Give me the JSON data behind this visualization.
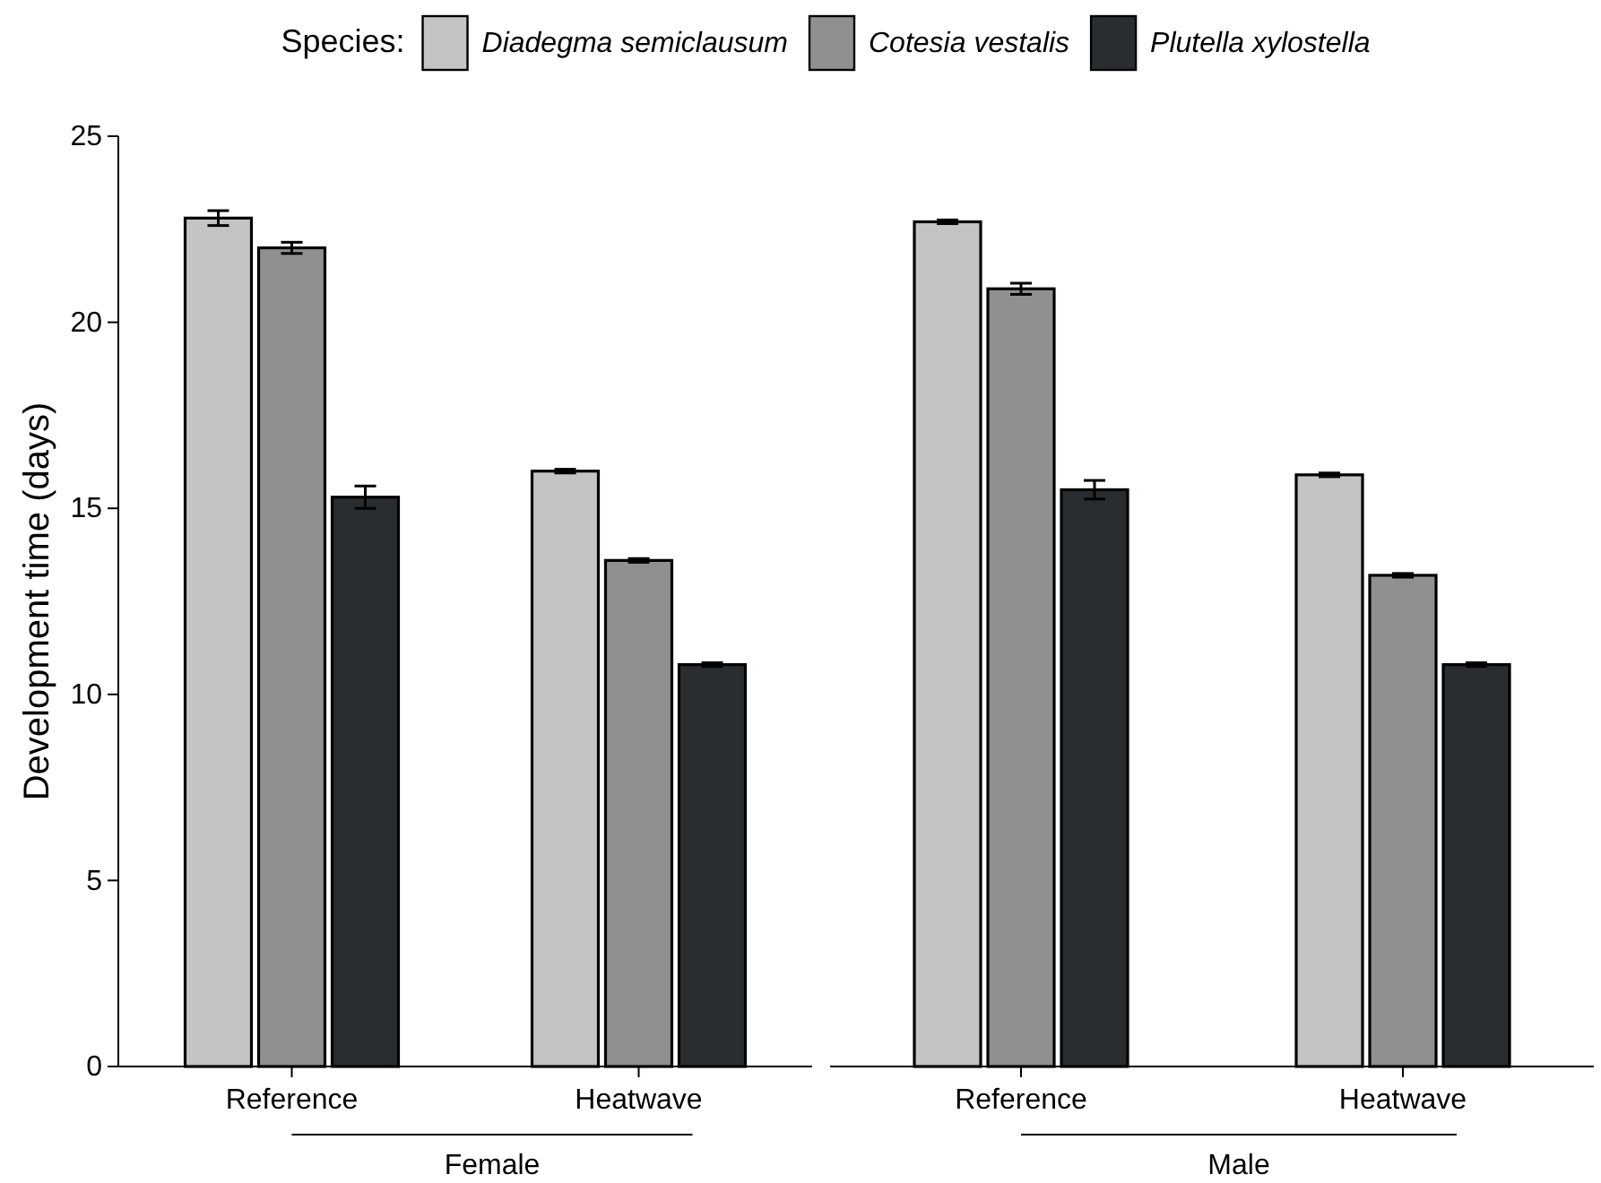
{
  "chart_data": [
    {
      "type": "bar",
      "legend_title": "Species:",
      "legend": "top",
      "ylabel": "Development time (days)",
      "xlabel": "Female",
      "categories": [
        "Reference",
        "Heatwave"
      ],
      "ylim": [
        0,
        25
      ],
      "yticks": [
        0,
        5,
        10,
        15,
        20,
        25
      ],
      "series": [
        {
          "name": "Diadegma semiclausum",
          "color": "#c4c4c4",
          "values": [
            22.8,
            16.0
          ],
          "errors": [
            0.2,
            0.05
          ]
        },
        {
          "name": "Cotesia vestalis",
          "color": "#8f9091",
          "values": [
            22.0,
            13.6
          ],
          "errors": [
            0.15,
            0.05
          ]
        },
        {
          "name": "Plutella xylostella",
          "color": "#2a2d2f",
          "values": [
            15.3,
            10.8
          ],
          "errors": [
            0.3,
            0.05
          ]
        }
      ]
    },
    {
      "type": "bar",
      "xlabel": "Male",
      "categories": [
        "Reference",
        "Heatwave"
      ],
      "ylim": [
        0,
        25
      ],
      "yticks": [
        0,
        5,
        10,
        15,
        20,
        25
      ],
      "tick_labels": "x",
      "series": [
        {
          "color": "#c4c4c4",
          "values": [
            22.7,
            15.9
          ],
          "errors": [
            0.05,
            0.05
          ]
        },
        {
          "color": "#8f9091",
          "values": [
            20.9,
            13.2
          ],
          "errors": [
            0.15,
            0.05
          ]
        },
        {
          "color": "#2a2d2f",
          "values": [
            15.5,
            10.8
          ],
          "errors": [
            0.25,
            0.05
          ]
        }
      ]
    }
  ]
}
